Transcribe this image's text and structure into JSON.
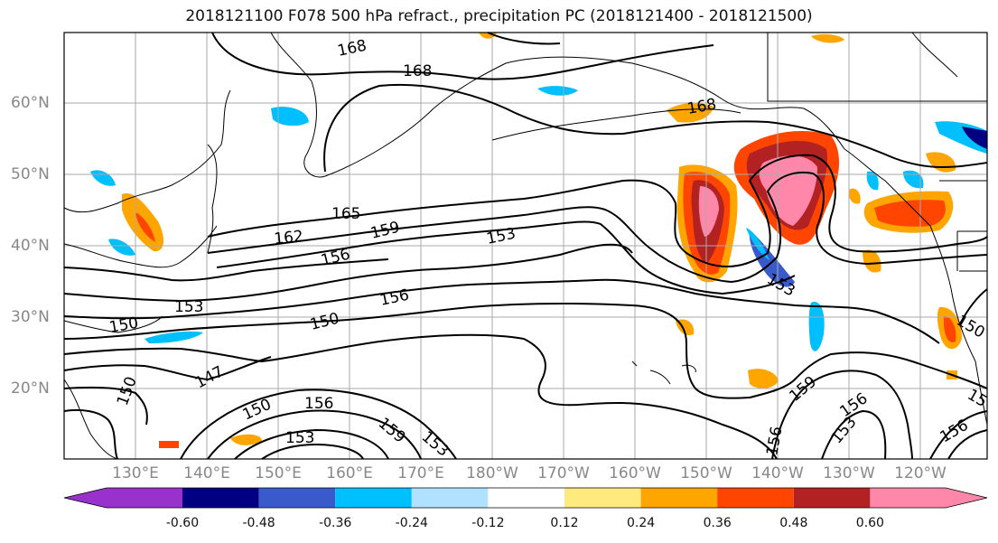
{
  "title": "2018121100 F078 500 hPa refract., precipitation PC (2018121400 - 2018121500)",
  "lat_labels": [
    "60°N",
    "50°N",
    "40°N",
    "30°N",
    "20°N"
  ],
  "lon_labels": [
    "130°E",
    "140°E",
    "150°E",
    "160°E",
    "170°E",
    "180°W",
    "170°W",
    "160°W",
    "150°W",
    "140°W",
    "130°W",
    "120°W"
  ],
  "colorbar": {
    "colors": [
      "#9932cc",
      "#000080",
      "#3a5acc",
      "#00bfff",
      "#b0e2ff",
      "#ffffff",
      "#ffea80",
      "#ffa500",
      "#ff4500",
      "#b22222",
      "#ff88aa"
    ],
    "tick_labels": [
      "-0.60",
      "-0.48",
      "-0.36",
      "-0.24",
      "-0.12",
      "0.12",
      "0.24",
      "0.36",
      "0.48",
      "0.60"
    ]
  },
  "contour_labels": [
    "168",
    "168",
    "168",
    "165",
    "162",
    "159",
    "156",
    "153",
    "153",
    "150",
    "156",
    "150",
    "147",
    "150",
    "150",
    "156",
    "153",
    "159",
    "153",
    "156",
    "159",
    "156",
    "153",
    "156",
    "153",
    "150",
    "15"
  ]
}
